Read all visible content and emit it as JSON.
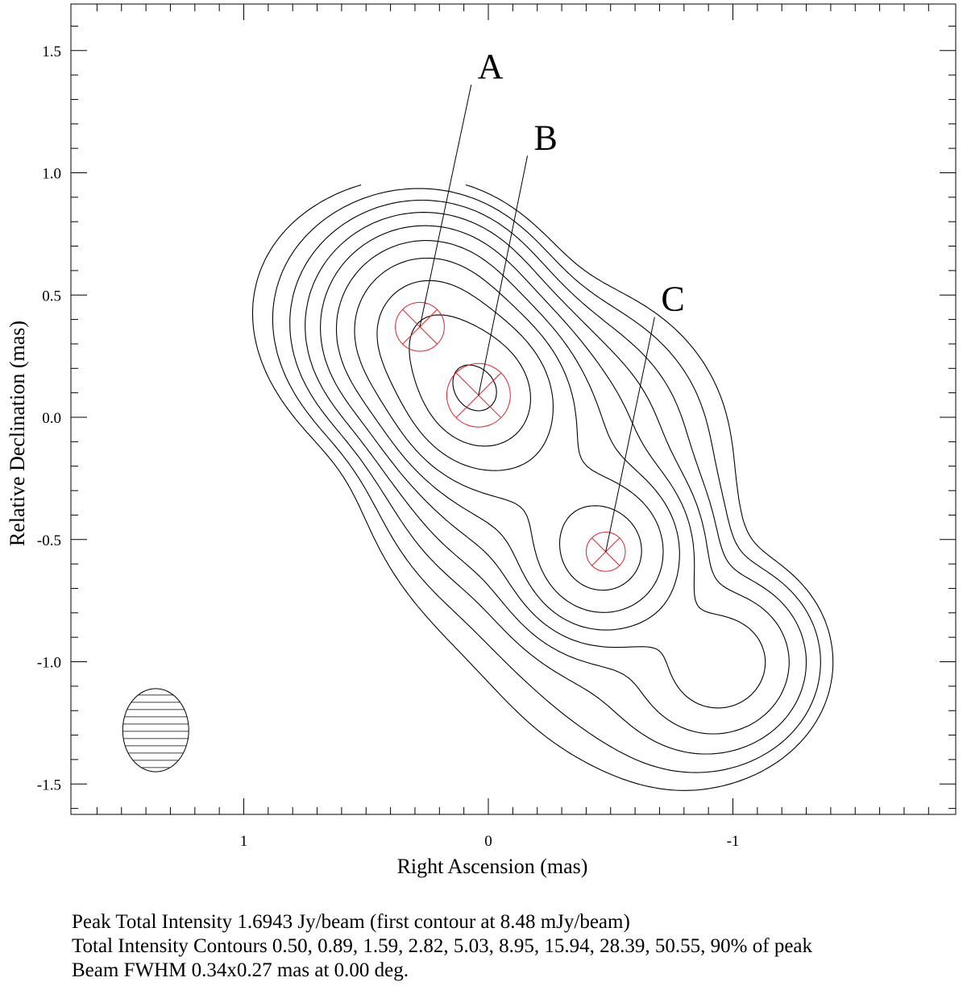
{
  "chart_data": {
    "type": "contour",
    "xlabel": "Right Ascension (mas)",
    "ylabel": "Relative Declination (mas)",
    "xlim": [
      1.7,
      -1.9
    ],
    "ylim": [
      -1.62,
      1.68
    ],
    "x_ticks": [
      1,
      0,
      -1
    ],
    "y_ticks": [
      1.5,
      1.0,
      0.5,
      0.0,
      -0.5,
      -1.0,
      -1.5
    ],
    "x_tick_labels": [
      "1",
      "0",
      "-1"
    ],
    "y_tick_labels": [
      "1.5",
      "1.0",
      "0.5",
      "0.0",
      "-0.5",
      "-1.0",
      "-1.5"
    ],
    "contour_levels_percent": [
      0.5,
      0.89,
      1.59,
      2.82,
      5.03,
      8.95,
      15.94,
      28.39,
      50.55,
      90
    ],
    "components": [
      {
        "label": "A",
        "x": 0.28,
        "y": 0.37,
        "radius": 0.1,
        "color": "#e8202a",
        "label_x": 0.07,
        "label_y": 1.36
      },
      {
        "label": "B",
        "x": 0.04,
        "y": 0.09,
        "radius": 0.13,
        "color": "#e8202a",
        "label_x": -0.16,
        "label_y": 1.07
      },
      {
        "label": "C",
        "x": -0.48,
        "y": -0.55,
        "radius": 0.08,
        "color": "#e8202a",
        "label_x": -0.68,
        "label_y": 0.41
      }
    ],
    "beam": {
      "x": 1.36,
      "y": -1.28,
      "major_fwhm": 0.34,
      "minor_fwhm": 0.27,
      "pa_deg": 0.0
    }
  },
  "caption": {
    "line1": "Peak Total Intensity 1.6943 Jy/beam (first contour at 8.48 mJy/beam)",
    "line2": "Total Intensity Contours 0.50, 0.89, 1.59, 2.82, 5.03, 8.95, 15.94, 28.39, 50.55, 90% of peak",
    "line3": "Beam FWHM 0.34x0.27 mas at 0.00 deg."
  }
}
